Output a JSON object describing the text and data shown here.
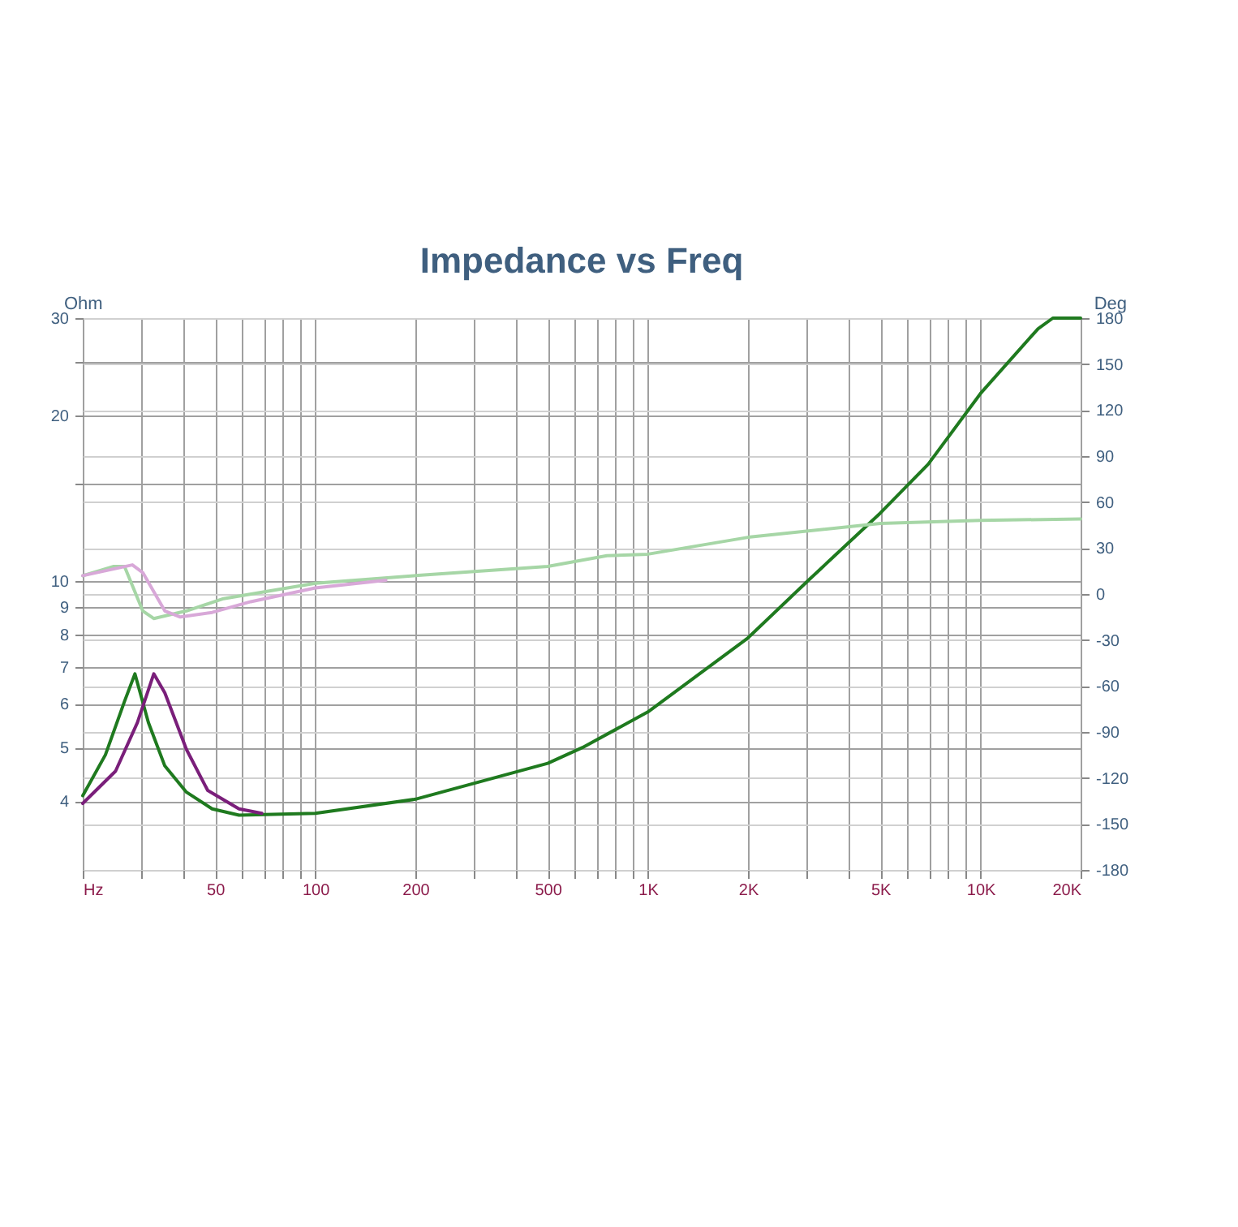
{
  "chart_data": {
    "type": "line",
    "title": "Impedance vs Freq",
    "ylabel": "Ohm",
    "y2label": "Deg",
    "log": "xy",
    "grid": true,
    "marker": "none",
    "line_style": "solid",
    "xlim": [
      20,
      20000
    ],
    "xticks": [
      {
        "value": 20,
        "label": "Hz"
      },
      {
        "value": 30,
        "label": null
      },
      {
        "value": 40,
        "label": null
      },
      50,
      {
        "value": 60,
        "label": null
      },
      {
        "value": 70,
        "label": null
      },
      {
        "value": 80,
        "label": null
      },
      {
        "value": 90,
        "label": null
      },
      100,
      200,
      {
        "value": 300,
        "label": null
      },
      {
        "value": 400,
        "label": null
      },
      500,
      {
        "value": 600,
        "label": null
      },
      {
        "value": 700,
        "label": null
      },
      {
        "value": 800,
        "label": null
      },
      {
        "value": 900,
        "label": null
      },
      {
        "value": 1000,
        "label": "1K"
      },
      {
        "value": 2000,
        "label": "2K"
      },
      {
        "value": 3000,
        "label": null
      },
      {
        "value": 4000,
        "label": null
      },
      {
        "value": 5000,
        "label": "5K"
      },
      {
        "value": 6000,
        "label": null
      },
      {
        "value": 7000,
        "label": null
      },
      {
        "value": 8000,
        "label": null
      },
      {
        "value": 9000,
        "label": null
      },
      {
        "value": 10000,
        "label": "10K"
      },
      {
        "value": 20000,
        "label": "20K"
      }
    ],
    "ylim": [
      3,
      30
    ],
    "yticks": [
      4,
      5,
      6,
      7,
      8,
      9,
      10,
      {
        "value": 15,
        "label": null
      },
      20,
      {
        "value": 25,
        "label": null
      },
      30
    ],
    "y2lim": [
      -180,
      180
    ],
    "y2ticks": [
      -180,
      -150,
      -120,
      -90,
      -60,
      -30,
      0,
      30,
      60,
      90,
      120,
      150,
      180
    ],
    "series": [
      {
        "color": "#1f7a1f",
        "x": [
          20,
          23.4,
          26.7,
          28.7,
          31.5,
          35.3,
          41,
          49,
          59,
          100,
          200,
          500,
          636,
          1000,
          2000,
          3040,
          5000,
          6960,
          10000,
          14900,
          16500,
          20000
        ],
        "values": [
          4.09,
          4.85,
          6.06,
          6.8,
          5.55,
          4.63,
          4.15,
          3.87,
          3.77,
          3.8,
          4.03,
          4.68,
          5.0,
          5.8,
          7.9,
          10.05,
          13.3,
          16.3,
          21.9,
          28.7,
          30,
          30
        ]
      },
      {
        "color": "#7a1f7a",
        "x": [
          20,
          25.1,
          29.2,
          32.7,
          35.3,
          41,
          47.5,
          59,
          69.1
        ],
        "values": [
          3.96,
          4.53,
          5.55,
          6.8,
          6.28,
          4.96,
          4.18,
          3.87,
          3.8
        ]
      },
      {
        "color": "#a6d6a6",
        "axis": "y2",
        "x": [
          20,
          24.8,
          26.7,
          30.3,
          32.7,
          41,
          53,
          100,
          200,
          500,
          753,
          1000,
          2000,
          5000,
          10000,
          20000
        ],
        "values": [
          12,
          18,
          18,
          -11,
          -16,
          -11,
          -3,
          7,
          12,
          18,
          25,
          26,
          37,
          46,
          48,
          49
        ]
      },
      {
        "color": "#d8a8d8",
        "axis": "y2",
        "x": [
          20,
          28.2,
          30.3,
          35.3,
          39.3,
          49,
          64,
          100,
          163
        ],
        "values": [
          12,
          19,
          14,
          -11,
          -15,
          -12,
          -5,
          4,
          9
        ]
      }
    ]
  }
}
